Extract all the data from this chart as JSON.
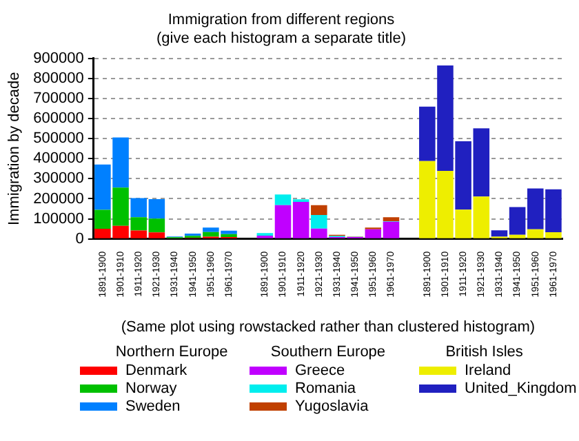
{
  "chart_data": {
    "type": "bar",
    "stacked": true,
    "title": "Immigration from different regions\n(give each histogram a separate title)",
    "ylabel": "Immigration by decade",
    "xlabel": "(Same plot using rowstacked rather than clustered histogram)",
    "annotations": [
      "Northern Europe",
      "Southern Europe",
      "British Isles"
    ],
    "categories": [
      "1891-1900",
      "1901-1910",
      "1911-1920",
      "1921-1930",
      "1931-1940",
      "1941-1950",
      "1951-1960",
      "1961-1970",
      null,
      "1891-1900",
      "1901-1910",
      "1911-1920",
      "1921-1930",
      "1931-1940",
      "1941-1950",
      "1951-1960",
      "1961-1970",
      null,
      "1891-1900",
      "1901-1910",
      "1911-1920",
      "1921-1930",
      "1931-1940",
      "1941-1950",
      "1951-1960",
      "1961-1970"
    ],
    "ylim": [
      0,
      900000
    ],
    "yticks": [
      0,
      100000,
      200000,
      300000,
      400000,
      500000,
      600000,
      700000,
      800000,
      900000
    ],
    "grid": "y",
    "legend": "bottom",
    "series": [
      {
        "name": "Denmark",
        "color": "#ff0000",
        "values": [
          50000,
          65000,
          42000,
          32000,
          3000,
          5000,
          11000,
          9000,
          null,
          null,
          null,
          null,
          null,
          null,
          null,
          null,
          null,
          null,
          null,
          null,
          null,
          null,
          null,
          null,
          null,
          null
        ]
      },
      {
        "name": "Norway",
        "color": "#00c000",
        "values": [
          95000,
          191000,
          66000,
          69000,
          5000,
          10000,
          23000,
          15000,
          null,
          null,
          null,
          null,
          null,
          null,
          null,
          null,
          null,
          null,
          null,
          null,
          null,
          null,
          null,
          null,
          null,
          null
        ]
      },
      {
        "name": "Sweden",
        "color": "#0080ff",
        "values": [
          226000,
          250000,
          95000,
          97000,
          4000,
          11000,
          22000,
          17000,
          null,
          null,
          null,
          null,
          null,
          null,
          null,
          null,
          null,
          null,
          null,
          null,
          null,
          null,
          null,
          null,
          null,
          null
        ]
      },
      {
        "name": "Greece",
        "color": "#c000ff",
        "values": [
          null,
          null,
          null,
          null,
          null,
          null,
          null,
          null,
          null,
          16000,
          168000,
          184000,
          51000,
          9000,
          9000,
          48000,
          86000,
          null,
          null,
          null,
          null,
          null,
          null,
          null,
          null,
          null
        ]
      },
      {
        "name": "Romania",
        "color": "#00eeee",
        "values": [
          null,
          null,
          null,
          null,
          null,
          null,
          null,
          null,
          null,
          13000,
          53000,
          13000,
          68000,
          5000,
          1000,
          null,
          2000,
          null,
          null,
          null,
          null,
          null,
          null,
          null,
          null,
          null
        ]
      },
      {
        "name": "Yugoslavia",
        "color": "#c04000",
        "values": [
          null,
          null,
          null,
          null,
          null,
          null,
          null,
          null,
          null,
          0,
          0,
          null,
          49000,
          6000,
          2000,
          8000,
          20000,
          null,
          null,
          null,
          null,
          null,
          null,
          null,
          null,
          null
        ]
      },
      {
        "name": "Ireland",
        "color": "#eeee00",
        "values": [
          null,
          null,
          null,
          null,
          null,
          null,
          null,
          null,
          null,
          null,
          null,
          null,
          null,
          null,
          null,
          null,
          null,
          null,
          388000,
          339000,
          146000,
          211000,
          11000,
          20000,
          48000,
          33000
        ]
      },
      {
        "name": "United_Kingdom",
        "color": "#2020c0",
        "values": [
          null,
          null,
          null,
          null,
          null,
          null,
          null,
          null,
          null,
          null,
          null,
          null,
          null,
          null,
          null,
          null,
          null,
          null,
          272000,
          526000,
          341000,
          340000,
          32000,
          139000,
          203000,
          214000
        ]
      }
    ]
  }
}
